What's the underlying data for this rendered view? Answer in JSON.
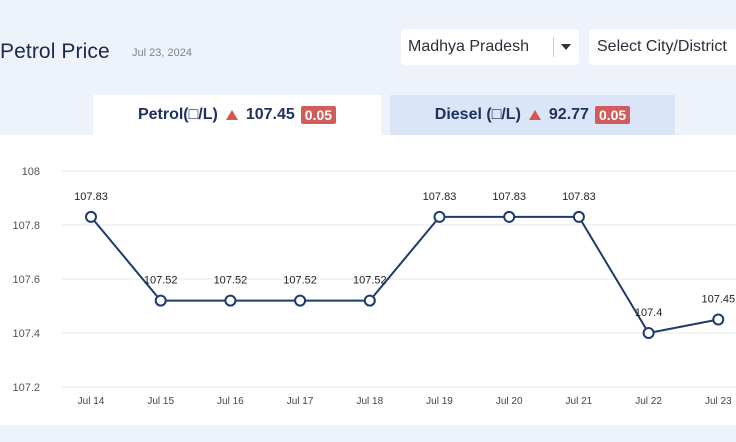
{
  "header": {
    "title": "Petrol Price",
    "date": "Jul 23, 2024",
    "state_select": {
      "value": "Madhya Pradesh"
    },
    "city_select": {
      "value": "Select City/District"
    }
  },
  "tabs": [
    {
      "label": "Petrol(□/L)",
      "price": "107.45",
      "change": "0.05",
      "trend": "up",
      "active": true
    },
    {
      "label": "Diesel (□/L)",
      "price": "92.77",
      "change": "0.05",
      "trend": "up",
      "active": false
    }
  ],
  "colors": {
    "line": "#1e3a6e",
    "up_arrow": "#d9534f",
    "badge": "#d05c5c",
    "active_tab": "#ffffff",
    "inactive_tab": "#dbe5f8"
  },
  "chart_data": {
    "type": "line",
    "title": "",
    "xlabel": "",
    "ylabel": "",
    "categories": [
      "Jul 14",
      "Jul 15",
      "Jul 16",
      "Jul 17",
      "Jul 18",
      "Jul 19",
      "Jul 20",
      "Jul 21",
      "Jul 22",
      "Jul 23"
    ],
    "series": [
      {
        "values": [
          107.83,
          107.52,
          107.52,
          107.52,
          107.52,
          107.83,
          107.83,
          107.83,
          107.4,
          107.45
        ]
      }
    ],
    "data_labels": [
      "107.83",
      "107.52",
      "107.52",
      "107.52",
      "107.52",
      "107.83",
      "107.83",
      "107.83",
      "107.4",
      "107.45"
    ],
    "ylim": [
      107.2,
      108
    ],
    "yticks": [
      "107.2",
      "107.4",
      "107.6",
      "107.8",
      "108"
    ],
    "grid": true,
    "legend": "none"
  }
}
